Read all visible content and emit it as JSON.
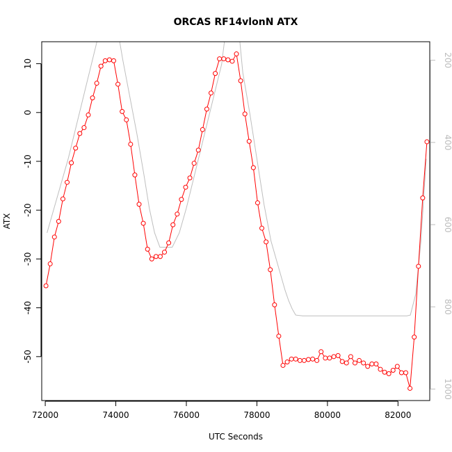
{
  "chart_data": {
    "type": "line",
    "title": "ORCAS RF14vlonN ATX",
    "xlabel": "UTC Seconds",
    "ylabel": "ATX",
    "xlim": [
      71900,
      82900
    ],
    "ylim": [
      -59,
      14.5
    ],
    "y2lim": [
      1028,
      155
    ],
    "y2_reversed": true,
    "x_ticks": [
      72000,
      74000,
      76000,
      78000,
      80000,
      82000
    ],
    "y_ticks": [
      -50,
      -40,
      -30,
      -20,
      -10,
      0,
      10
    ],
    "y2_ticks": [
      200,
      400,
      600,
      800,
      1000
    ],
    "grid": false,
    "series": [
      {
        "style": "line+points",
        "color": "#ff0000",
        "axis": "left",
        "x": [
          72020,
          72140,
          72260,
          72380,
          72500,
          72620,
          72740,
          72860,
          72980,
          73100,
          73220,
          73340,
          73460,
          73580,
          73700,
          73820,
          73940,
          74060,
          74180,
          74300,
          74420,
          74540,
          74660,
          74780,
          74900,
          75020,
          75140,
          75260,
          75380,
          75500,
          75620,
          75740,
          75860,
          75980,
          76100,
          76220,
          76340,
          76460,
          76580,
          76700,
          76820,
          76940,
          77060,
          77180,
          77300,
          77420,
          77540,
          77660,
          77780,
          77900,
          78020,
          78140,
          78260,
          78380,
          78500,
          78620,
          78740,
          78860,
          78980,
          79100,
          79220,
          79340,
          79460,
          79580,
          79700,
          79820,
          79940,
          80060,
          80180,
          80300,
          80420,
          80540,
          80660,
          80780,
          80900,
          81020,
          81140,
          81260,
          81380,
          81500,
          81620,
          81740,
          81860,
          81980,
          82100,
          82220,
          82340,
          82460,
          82580,
          82700,
          82820
        ],
        "y": [
          -35.5,
          -31,
          -25.5,
          -22.3,
          -17.7,
          -14.3,
          -10.3,
          -7.3,
          -4.3,
          -3.1,
          -0.5,
          3,
          6,
          9.5,
          10.6,
          10.8,
          10.6,
          5.8,
          0.2,
          -1.5,
          -6.5,
          -12.8,
          -18.8,
          -22.7,
          -28,
          -30,
          -29.5,
          -29.5,
          -28.6,
          -26.7,
          -23,
          -20.8,
          -17.8,
          -15.3,
          -13.4,
          -10.4,
          -7.7,
          -3.5,
          0.7,
          4,
          8,
          11,
          11,
          10.8,
          10.5,
          12,
          6.5,
          -0.3,
          -5.9,
          -11.3,
          -18.5,
          -23.7,
          -26.5,
          -32.2,
          -39.4,
          -45.8,
          -51.8,
          -51.1,
          -50.5,
          -50.5,
          -50.8,
          -50.8,
          -50.6,
          -50.5,
          -50.8,
          -49,
          -50.3,
          -50.3,
          -50,
          -49.8,
          -51,
          -51.3,
          -50,
          -51.3,
          -50.8,
          -51.3,
          -52,
          -51.5,
          -51.5,
          -52.6,
          -53.2,
          -53.5,
          -52.8,
          -52,
          -53.3,
          -53.3,
          -56.5,
          -46,
          -31.5,
          -17.5,
          -6
        ],
        "marker": "open-circle"
      },
      {
        "style": "line",
        "color": "#bebebe",
        "axis": "right",
        "x": [
          72050,
          72250,
          72450,
          72650,
          72850,
          73050,
          73250,
          73450,
          73600,
          74000,
          74200,
          74400,
          74600,
          74800,
          74950,
          75100,
          75250,
          75400,
          75600,
          75800,
          76000,
          76200,
          76400,
          76600,
          76800,
          77000,
          77100,
          77500,
          77600,
          77800,
          78000,
          78200,
          78400,
          78600,
          78800,
          78900,
          79000,
          79100,
          79300,
          81000,
          82000,
          82250,
          82350,
          82500,
          82650,
          82800
        ],
        "y": [
          620,
          560,
          500,
          440,
          370,
          300,
          230,
          160,
          100,
          100,
          200,
          290,
          380,
          480,
          560,
          620,
          655,
          655,
          655,
          620,
          560,
          490,
          420,
          350,
          280,
          210,
          140,
          140,
          230,
          330,
          440,
          550,
          640,
          700,
          760,
          785,
          805,
          820,
          822,
          822,
          822,
          822,
          820,
          770,
          640,
          440
        ]
      }
    ]
  }
}
